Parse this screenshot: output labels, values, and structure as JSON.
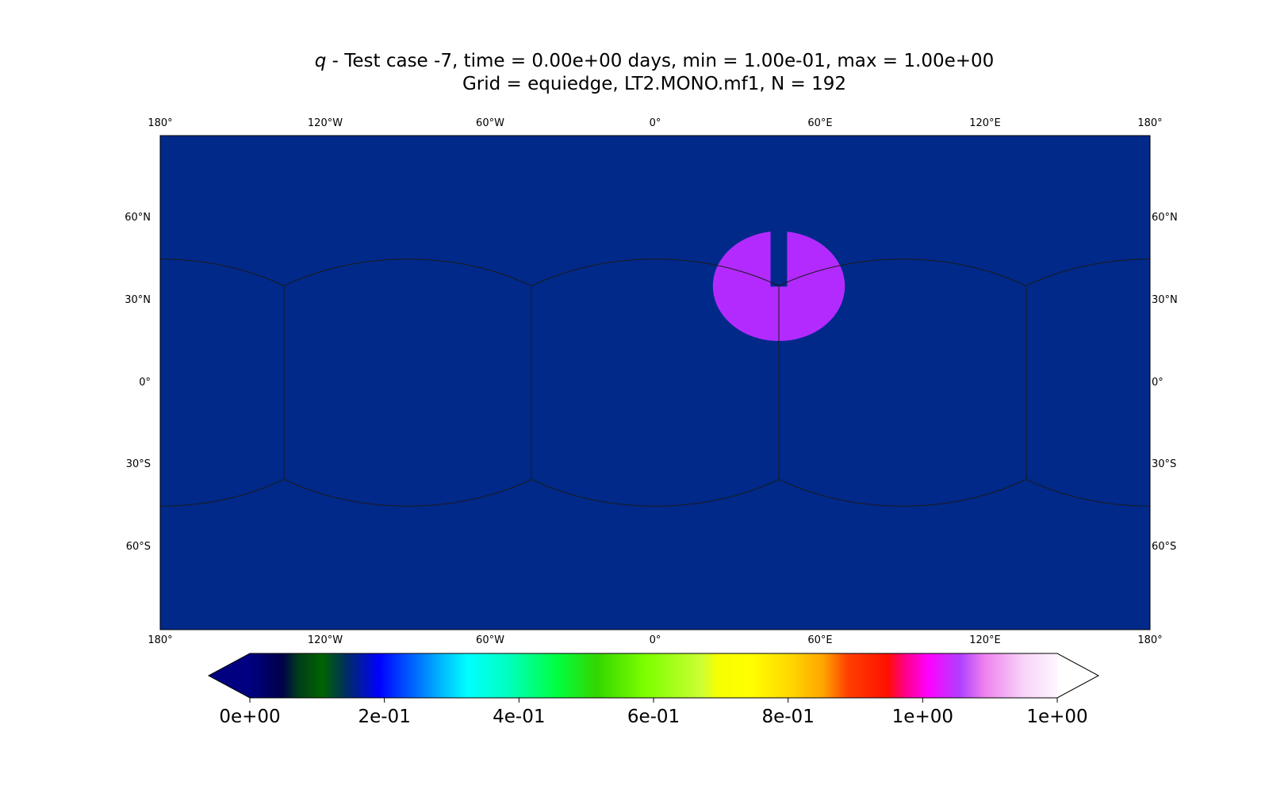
{
  "title": {
    "variable": "q",
    "line1_rest": " - Test case -7, time = 0.00e+00 days, min = 1.00e-01, max = 1.00e+00",
    "line2": "Grid = equiedge, LT2.MONO.mf1, N = 192"
  },
  "map": {
    "projection": "equirectangular",
    "extent_lon": [
      -180,
      180
    ],
    "extent_lat": [
      -90,
      90
    ],
    "background_color": "#012989",
    "grid_line_color": "#1a1a1a",
    "feature": {
      "description_color": "#b32aff",
      "value": 1.0,
      "center_lon": 45,
      "center_lat": 35,
      "radius_lon_deg": 24,
      "radius_lat_deg": 20,
      "slot_lon_range": [
        42,
        48
      ],
      "slot_lat_bottom": 35
    },
    "cube_grid": {
      "face_edge_lons": [
        -135,
        -45,
        45,
        135
      ],
      "equator_edge_lat": 35.26
    }
  },
  "axes": {
    "lon_ticks": [
      "180°",
      "120°W",
      "60°W",
      "0°",
      "60°E",
      "120°E",
      "180°"
    ],
    "lon_tick_values": [
      -180,
      -120,
      -60,
      0,
      60,
      120,
      180
    ],
    "lat_ticks": [
      "60°N",
      "30°N",
      "0°",
      "30°S",
      "60°S"
    ],
    "lat_tick_values": [
      60,
      30,
      0,
      -30,
      -60
    ]
  },
  "colorbar": {
    "extend": "both",
    "range": [
      0.0,
      1.2
    ],
    "tick_labels": [
      "0e+00",
      "2e-01",
      "4e-01",
      "6e-01",
      "8e-01",
      "1e+00",
      "1e+00"
    ],
    "tick_values": [
      0.0,
      0.2,
      0.4,
      0.6,
      0.8,
      1.0,
      1.2
    ],
    "under_color": "#000080",
    "over_color": "#ffffff",
    "colormap_stops": [
      [
        "0.00",
        "#000080"
      ],
      [
        "0.04",
        "#00004a"
      ],
      [
        "0.06",
        "#003d1a"
      ],
      [
        "0.09",
        "#006400"
      ],
      [
        "0.12",
        "#002c64"
      ],
      [
        "0.16",
        "#0000ff"
      ],
      [
        "0.24",
        "#00bfff"
      ],
      [
        "0.27",
        "#00ffff"
      ],
      [
        "0.32",
        "#00ffbf"
      ],
      [
        "0.38",
        "#00ff40"
      ],
      [
        "0.43",
        "#33d600"
      ],
      [
        "0.49",
        "#7dff00"
      ],
      [
        "0.56",
        "#ccff33"
      ],
      [
        "0.58",
        "#f7ff00"
      ],
      [
        "0.62",
        "#ffff00"
      ],
      [
        "0.67",
        "#ffd700"
      ],
      [
        "0.71",
        "#ffa500"
      ],
      [
        "0.74",
        "#ff4000"
      ],
      [
        "0.79",
        "#ff1000"
      ],
      [
        "0.81",
        "#ff0080"
      ],
      [
        "0.84",
        "#ff00ff"
      ],
      [
        "0.88",
        "#b040ff"
      ],
      [
        "0.91",
        "#ee82ee"
      ],
      [
        "0.96",
        "#f8d6f8"
      ],
      [
        "1.00",
        "#fff5ff"
      ]
    ]
  }
}
